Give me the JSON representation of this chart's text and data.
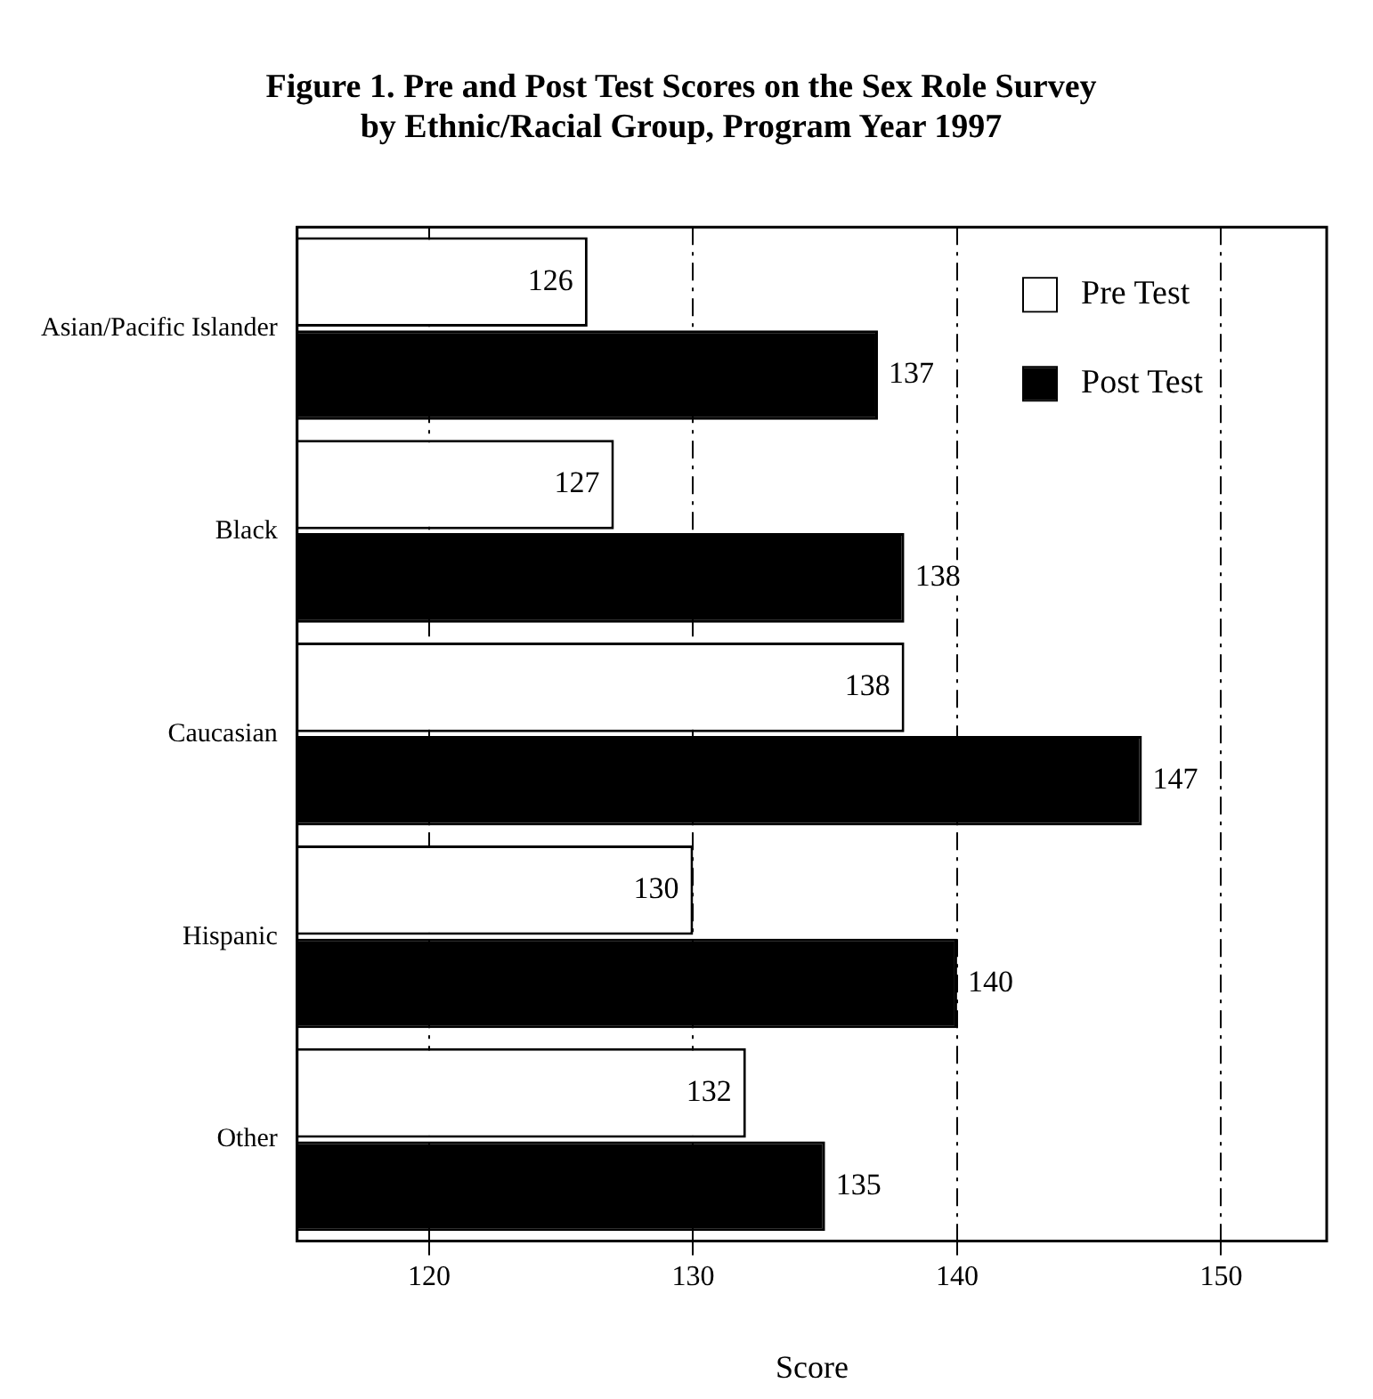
{
  "chart_data": {
    "type": "bar",
    "orientation": "horizontal",
    "title": [
      "Figure 1. Pre and Post Test Scores on the Sex Role Survey",
      "by Ethnic/Racial Group, Program Year 1997"
    ],
    "xlabel": "Score",
    "categories": [
      "Asian/Pacific Islander",
      "Black",
      "Caucasian",
      "Hispanic",
      "Other"
    ],
    "series": [
      {
        "name": "Pre Test",
        "color": "#ffffff",
        "values": [
          126,
          127,
          138,
          130,
          132
        ]
      },
      {
        "name": "Post Test",
        "color": "#000000",
        "values": [
          137,
          138,
          147,
          140,
          135
        ]
      }
    ],
    "xlim": [
      115,
      154
    ],
    "xticks": [
      120,
      130,
      140,
      150
    ],
    "grid": "x",
    "legend": "top right",
    "data_labels": true
  }
}
